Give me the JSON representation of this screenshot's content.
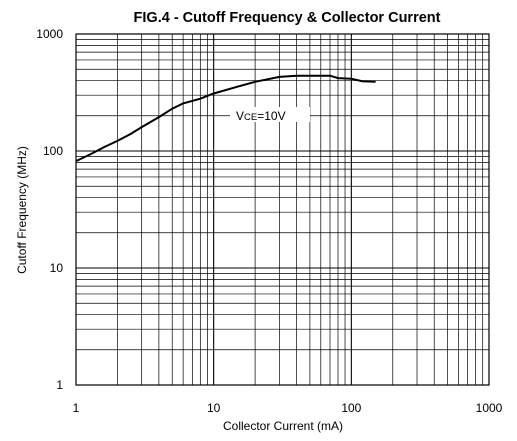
{
  "chart_data": {
    "type": "line",
    "title": "FIG.4 - Cutoff Frequency & Collector Current",
    "xlabel": "Collector Current (mA)",
    "ylabel": "Cutoff Frequency (MHz)",
    "x_scale": "log",
    "y_scale": "log",
    "xlim": [
      1,
      1000
    ],
    "ylim": [
      1,
      1000
    ],
    "x_ticks": [
      "1",
      "10",
      "100",
      "1000"
    ],
    "y_ticks": [
      "1",
      "10",
      "100",
      "1000"
    ],
    "grid": true,
    "annotation": {
      "prefix": "V",
      "subscript": "CE",
      "suffix": "=10V"
    },
    "series": [
      {
        "x": [
          1,
          1.3,
          1.6,
          2,
          2.5,
          3,
          4,
          5,
          6,
          8,
          10,
          15,
          20,
          30,
          40,
          50,
          70,
          80,
          100,
          120,
          150
        ],
        "y": [
          82,
          95,
          108,
          122,
          140,
          160,
          195,
          230,
          255,
          280,
          310,
          355,
          390,
          430,
          440,
          440,
          440,
          420,
          415,
          395,
          390
        ]
      }
    ]
  }
}
